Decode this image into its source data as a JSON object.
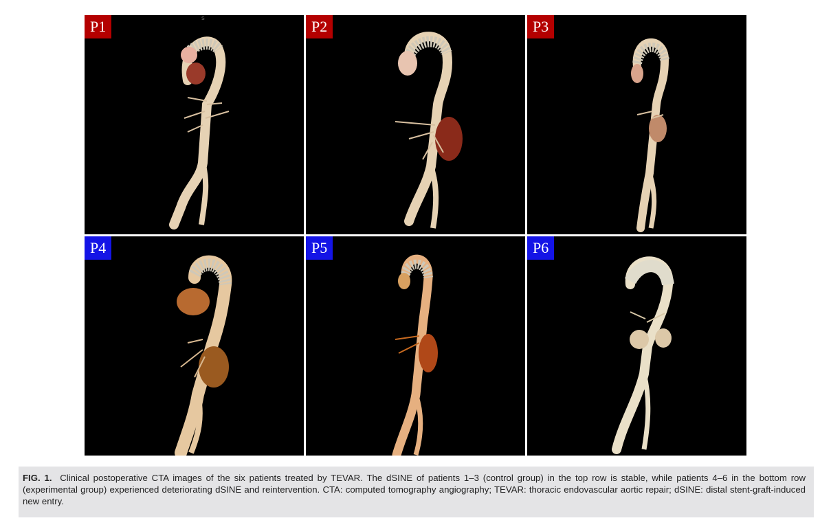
{
  "figure": {
    "panels": [
      {
        "label": "P1",
        "group": "control",
        "marker": "S"
      },
      {
        "label": "P2",
        "group": "control"
      },
      {
        "label": "P3",
        "group": "control"
      },
      {
        "label": "P4",
        "group": "experimental"
      },
      {
        "label": "P5",
        "group": "experimental"
      },
      {
        "label": "P6",
        "group": "experimental"
      }
    ],
    "label_colors": {
      "control": "#b40000",
      "experimental": "#1414e6"
    },
    "background_color": "#000000"
  },
  "caption": {
    "label": "FIG. 1.",
    "text": "Clinical postoperative CTA images of the six patients treated by TEVAR. The dSINE of patients 1–3 (control group) in the top row is stable, while patients 4–6 in the bottom row (experimental group) experienced deteriorating dSINE and reintervention. CTA: computed tomography angiography; TEVAR: thoracic endovascular aortic repair; dSINE: distal stent-graft-induced new entry."
  }
}
